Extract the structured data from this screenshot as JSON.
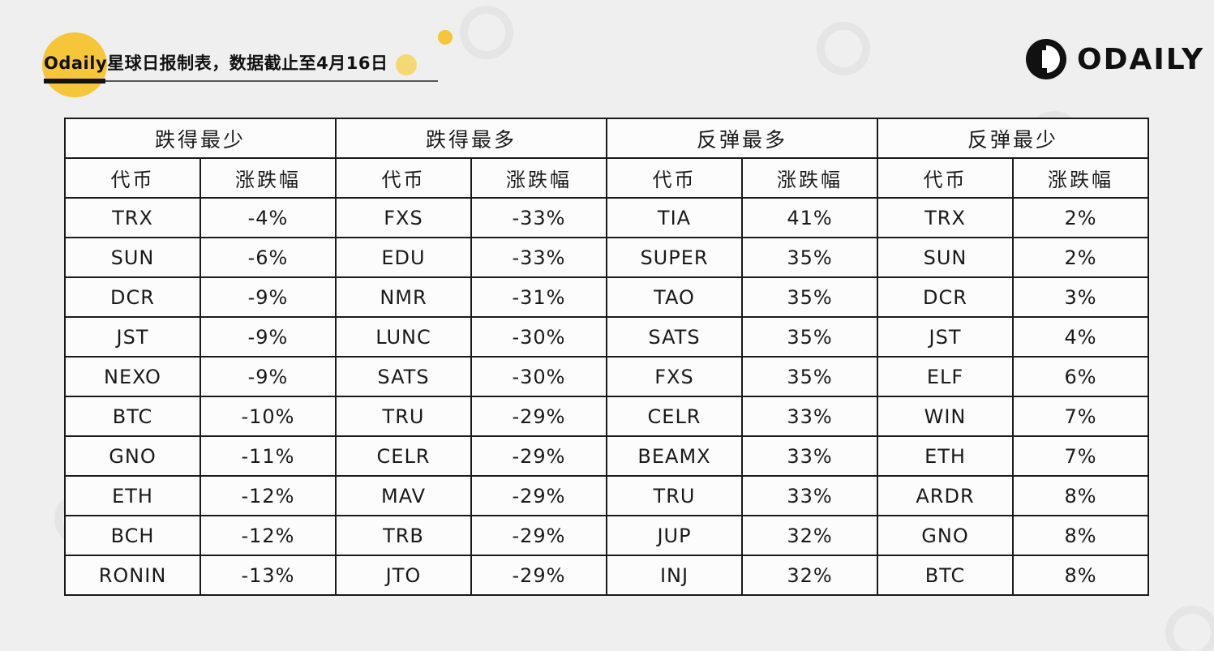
{
  "header": {
    "title": "Odaily星球日报制表，数据截止至4月16日",
    "logo_text": "ODAILY"
  },
  "colors": {
    "accent_yellow": "#f5c53a",
    "border": "#1a1a1a",
    "background": "#efefef"
  },
  "table": {
    "groups": [
      {
        "title": "跌得最少",
        "col_token": "代币",
        "col_change": "涨跌幅",
        "rows": [
          {
            "token": "TRX",
            "change": "-4%"
          },
          {
            "token": "SUN",
            "change": "-6%"
          },
          {
            "token": "DCR",
            "change": "-9%"
          },
          {
            "token": "JST",
            "change": "-9%"
          },
          {
            "token": "NEXO",
            "change": "-9%"
          },
          {
            "token": "BTC",
            "change": "-10%"
          },
          {
            "token": "GNO",
            "change": "-11%"
          },
          {
            "token": "ETH",
            "change": "-12%"
          },
          {
            "token": "BCH",
            "change": "-12%"
          },
          {
            "token": "RONIN",
            "change": "-13%"
          }
        ]
      },
      {
        "title": "跌得最多",
        "col_token": "代币",
        "col_change": "涨跌幅",
        "rows": [
          {
            "token": "FXS",
            "change": "-33%"
          },
          {
            "token": "EDU",
            "change": "-33%"
          },
          {
            "token": "NMR",
            "change": "-31%"
          },
          {
            "token": "LUNC",
            "change": "-30%"
          },
          {
            "token": "SATS",
            "change": "-30%"
          },
          {
            "token": "TRU",
            "change": "-29%"
          },
          {
            "token": "CELR",
            "change": "-29%"
          },
          {
            "token": "MAV",
            "change": "-29%"
          },
          {
            "token": "TRB",
            "change": "-29%"
          },
          {
            "token": "JTO",
            "change": "-29%"
          }
        ]
      },
      {
        "title": "反弹最多",
        "col_token": "代币",
        "col_change": "涨跌幅",
        "rows": [
          {
            "token": "TIA",
            "change": "41%"
          },
          {
            "token": "SUPER",
            "change": "35%"
          },
          {
            "token": "TAO",
            "change": "35%"
          },
          {
            "token": "SATS",
            "change": "35%"
          },
          {
            "token": "FXS",
            "change": "35%"
          },
          {
            "token": "CELR",
            "change": "33%"
          },
          {
            "token": "BEAMX",
            "change": "33%"
          },
          {
            "token": "TRU",
            "change": "33%"
          },
          {
            "token": "JUP",
            "change": "32%"
          },
          {
            "token": "INJ",
            "change": "32%"
          }
        ]
      },
      {
        "title": "反弹最少",
        "col_token": "代币",
        "col_change": "涨跌幅",
        "rows": [
          {
            "token": "TRX",
            "change": "2%"
          },
          {
            "token": "SUN",
            "change": "2%"
          },
          {
            "token": "DCR",
            "change": "3%"
          },
          {
            "token": "JST",
            "change": "4%"
          },
          {
            "token": "ELF",
            "change": "6%"
          },
          {
            "token": "WIN",
            "change": "7%"
          },
          {
            "token": "ETH",
            "change": "7%"
          },
          {
            "token": "ARDR",
            "change": "8%"
          },
          {
            "token": "GNO",
            "change": "8%"
          },
          {
            "token": "BTC",
            "change": "8%"
          }
        ]
      }
    ]
  }
}
